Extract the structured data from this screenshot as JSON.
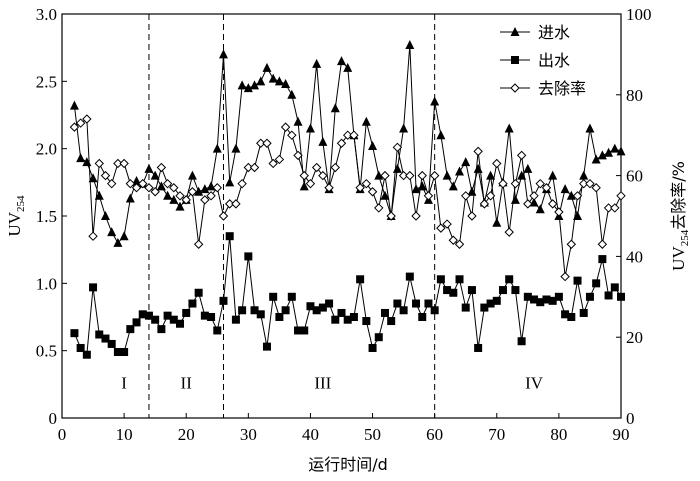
{
  "chart_data": {
    "type": "line",
    "xlabel": "运行时间/d",
    "ylabel": [
      "UV",
      "254"
    ],
    "y2label": [
      "UV",
      "254",
      "去除率/%"
    ],
    "xlim": [
      0,
      90
    ],
    "xticks": [
      0,
      10,
      20,
      30,
      40,
      50,
      60,
      70,
      80,
      90
    ],
    "ylim": [
      0,
      3
    ],
    "yticks": [
      0,
      0.5,
      {
        "value": 1,
        "label": "1.0"
      },
      1.5,
      {
        "value": 2,
        "label": "2.0"
      },
      2.5,
      {
        "value": 3,
        "label": "3.0"
      }
    ],
    "y2lim": [
      0,
      100
    ],
    "y2ticks": [
      0,
      20,
      40,
      60,
      80,
      100
    ],
    "dividers": [
      14,
      26,
      60
    ],
    "annotations": [
      {
        "text": "I",
        "x": 10,
        "y": 0.22
      },
      {
        "text": "II",
        "x": 20,
        "y": 0.22
      },
      {
        "text": "III",
        "x": 42,
        "y": 0.22
      },
      {
        "text": "IV",
        "x": 76,
        "y": 0.22
      }
    ],
    "legend": "upper right",
    "x": [
      2,
      3,
      4,
      5,
      6,
      7,
      8,
      9,
      10,
      11,
      12,
      13,
      14,
      15,
      16,
      17,
      18,
      19,
      20,
      21,
      22,
      23,
      24,
      25,
      26,
      27,
      28,
      29,
      30,
      31,
      32,
      33,
      34,
      35,
      36,
      37,
      38,
      39,
      40,
      41,
      42,
      43,
      44,
      45,
      46,
      47,
      48,
      49,
      50,
      51,
      52,
      53,
      54,
      55,
      56,
      57,
      58,
      59,
      60,
      61,
      62,
      63,
      64,
      65,
      66,
      67,
      68,
      69,
      70,
      71,
      72,
      73,
      74,
      75,
      76,
      77,
      78,
      79,
      80,
      81,
      82,
      83,
      84,
      85,
      86,
      87,
      88,
      89,
      90
    ],
    "series": [
      {
        "name": "进水",
        "color": "#000000",
        "marker": "triangle",
        "axis": "y",
        "values": [
          2.32,
          1.93,
          1.9,
          1.78,
          1.65,
          1.5,
          1.38,
          1.3,
          1.35,
          1.63,
          1.76,
          1.74,
          1.85,
          1.8,
          1.72,
          1.65,
          1.62,
          1.57,
          1.62,
          1.8,
          1.68,
          1.7,
          1.72,
          2.0,
          2.7,
          1.75,
          2.0,
          2.47,
          2.45,
          2.47,
          2.5,
          2.6,
          2.52,
          2.5,
          2.48,
          2.4,
          2.2,
          1.72,
          2.15,
          2.63,
          2.05,
          1.7,
          2.3,
          2.65,
          2.6,
          2.1,
          1.7,
          2.2,
          2.02,
          1.8,
          1.65,
          1.5,
          1.85,
          2.15,
          2.77,
          1.7,
          1.72,
          1.62,
          2.35,
          2.1,
          1.8,
          1.72,
          1.83,
          1.9,
          1.68,
          1.85,
          1.6,
          1.8,
          1.45,
          1.75,
          2.15,
          1.62,
          1.8,
          1.85,
          1.6,
          1.55,
          1.7,
          1.8,
          1.5,
          1.7,
          1.65,
          1.5,
          1.8,
          2.15,
          1.92,
          1.95,
          1.97,
          2.0,
          1.98
        ]
      },
      {
        "name": "出水",
        "color": "#000000",
        "marker": "square",
        "axis": "y",
        "values": [
          0.63,
          0.52,
          0.47,
          0.97,
          0.62,
          0.59,
          0.55,
          0.49,
          0.49,
          0.66,
          0.71,
          0.77,
          0.76,
          0.73,
          0.66,
          0.76,
          0.73,
          0.7,
          0.78,
          0.85,
          0.93,
          0.76,
          0.75,
          0.65,
          0.87,
          1.35,
          0.73,
          0.8,
          1.2,
          0.8,
          0.77,
          0.53,
          0.9,
          0.75,
          0.8,
          0.9,
          0.65,
          0.65,
          0.83,
          0.8,
          0.82,
          0.85,
          0.73,
          0.78,
          0.73,
          0.75,
          1.03,
          0.72,
          0.52,
          0.6,
          0.78,
          0.72,
          0.85,
          0.8,
          1.05,
          0.85,
          0.75,
          0.85,
          0.8,
          1.03,
          0.95,
          0.93,
          1.03,
          0.82,
          0.95,
          0.52,
          0.82,
          0.85,
          0.87,
          0.95,
          1.03,
          0.95,
          0.57,
          0.9,
          0.88,
          0.86,
          0.88,
          0.87,
          0.9,
          0.77,
          0.75,
          1.02,
          0.78,
          0.9,
          1.0,
          1.18,
          0.91,
          0.97,
          0.9
        ]
      },
      {
        "name": "去除率",
        "color": "#000000",
        "marker": "diamond",
        "axis": "y2",
        "values": [
          72,
          73,
          74,
          45,
          63,
          60,
          58,
          63,
          63,
          58,
          57,
          58,
          57,
          56,
          62,
          58,
          57,
          55,
          54,
          56,
          43,
          54,
          55,
          57,
          50,
          53,
          53,
          58,
          62,
          62,
          68,
          68,
          63,
          64,
          72,
          70,
          65,
          60,
          58,
          62,
          60,
          57,
          62,
          68,
          70,
          70,
          57,
          58,
          56,
          52,
          60,
          50,
          67,
          60,
          60,
          50,
          60,
          55,
          60,
          47,
          48,
          44,
          43,
          55,
          50,
          66,
          53,
          55,
          63,
          58,
          46,
          58,
          65,
          53,
          55,
          58,
          57,
          53,
          51,
          35,
          43,
          55,
          58,
          58,
          57,
          43,
          52,
          52,
          55
        ]
      }
    ]
  }
}
